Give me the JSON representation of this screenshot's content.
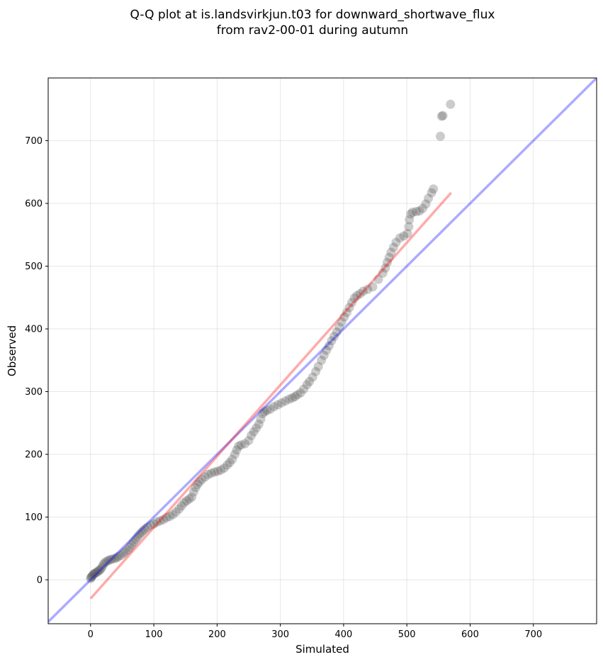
{
  "chart_data": {
    "type": "scatter",
    "title_lines": [
      "Q-Q plot at is.landsvirkjun.t03 for downward_shortwave_flux",
      "from rav2-00-01 during autumn"
    ],
    "xlabel": "Simulated",
    "ylabel": "Observed",
    "xlim": [
      -67,
      800
    ],
    "ylim": [
      -70,
      800
    ],
    "xticks": [
      0,
      100,
      200,
      300,
      400,
      500,
      600,
      700
    ],
    "yticks": [
      0,
      100,
      200,
      300,
      400,
      500,
      600,
      700
    ],
    "grid": true,
    "colors": {
      "points": "#555555",
      "identity_line": "#0000ff",
      "fit_line": "#ff0000"
    },
    "reference_lines": [
      {
        "kind": "identity",
        "x": [
          -67,
          800
        ],
        "y": [
          -67,
          800
        ]
      },
      {
        "kind": "fit",
        "x": [
          0,
          570
        ],
        "y": [
          -30,
          617
        ]
      }
    ],
    "points": [
      [
        0,
        2
      ],
      [
        1,
        4
      ],
      [
        2,
        5
      ],
      [
        3,
        7
      ],
      [
        5,
        9
      ],
      [
        6,
        10
      ],
      [
        8,
        11
      ],
      [
        10,
        12
      ],
      [
        12,
        14
      ],
      [
        14,
        15
      ],
      [
        16,
        17
      ],
      [
        18,
        20
      ],
      [
        20,
        24
      ],
      [
        22,
        27
      ],
      [
        25,
        29
      ],
      [
        28,
        31
      ],
      [
        31,
        32
      ],
      [
        34,
        33
      ],
      [
        38,
        34
      ],
      [
        41,
        35
      ],
      [
        44,
        37
      ],
      [
        48,
        39
      ],
      [
        52,
        42
      ],
      [
        55,
        45
      ],
      [
        59,
        48
      ],
      [
        62,
        52
      ],
      [
        65,
        56
      ],
      [
        68,
        60
      ],
      [
        71,
        64
      ],
      [
        74,
        68
      ],
      [
        77,
        72
      ],
      [
        80,
        75
      ],
      [
        83,
        78
      ],
      [
        86,
        81
      ],
      [
        90,
        84
      ],
      [
        95,
        87
      ],
      [
        100,
        89
      ],
      [
        105,
        92
      ],
      [
        110,
        94
      ],
      [
        115,
        96
      ],
      [
        120,
        99
      ],
      [
        125,
        101
      ],
      [
        130,
        104
      ],
      [
        135,
        108
      ],
      [
        140,
        113
      ],
      [
        144,
        118
      ],
      [
        148,
        123
      ],
      [
        152,
        126
      ],
      [
        156,
        129
      ],
      [
        160,
        132
      ],
      [
        163,
        140
      ],
      [
        166,
        147
      ],
      [
        169,
        152
      ],
      [
        172,
        156
      ],
      [
        176,
        160
      ],
      [
        181,
        164
      ],
      [
        186,
        168
      ],
      [
        191,
        170
      ],
      [
        196,
        172
      ],
      [
        201,
        173
      ],
      [
        206,
        175
      ],
      [
        211,
        178
      ],
      [
        216,
        183
      ],
      [
        220,
        187
      ],
      [
        224,
        192
      ],
      [
        228,
        200
      ],
      [
        231,
        207
      ],
      [
        234,
        213
      ],
      [
        238,
        215
      ],
      [
        244,
        217
      ],
      [
        250,
        222
      ],
      [
        254,
        230
      ],
      [
        258,
        236
      ],
      [
        262,
        242
      ],
      [
        266,
        248
      ],
      [
        269,
        256
      ],
      [
        272,
        265
      ],
      [
        275,
        268
      ],
      [
        279,
        270
      ],
      [
        284,
        272
      ],
      [
        290,
        276
      ],
      [
        296,
        279
      ],
      [
        302,
        282
      ],
      [
        308,
        285
      ],
      [
        314,
        288
      ],
      [
        319,
        290
      ],
      [
        323,
        292
      ],
      [
        327,
        295
      ],
      [
        332,
        298
      ],
      [
        337,
        304
      ],
      [
        342,
        311
      ],
      [
        346,
        316
      ],
      [
        351,
        323
      ],
      [
        356,
        332
      ],
      [
        360,
        340
      ],
      [
        365,
        350
      ],
      [
        369,
        358
      ],
      [
        373,
        366
      ],
      [
        377,
        373
      ],
      [
        381,
        381
      ],
      [
        385,
        388
      ],
      [
        389,
        395
      ],
      [
        393,
        403
      ],
      [
        397,
        411
      ],
      [
        401,
        419
      ],
      [
        405,
        426
      ],
      [
        409,
        434
      ],
      [
        413,
        442
      ],
      [
        417,
        449
      ],
      [
        421,
        453
      ],
      [
        426,
        456
      ],
      [
        431,
        460
      ],
      [
        438,
        463
      ],
      [
        446,
        467
      ],
      [
        455,
        479
      ],
      [
        462,
        489
      ],
      [
        466,
        497
      ],
      [
        469,
        506
      ],
      [
        472,
        514
      ],
      [
        475,
        522
      ],
      [
        479,
        530
      ],
      [
        483,
        538
      ],
      [
        489,
        545
      ],
      [
        495,
        548
      ],
      [
        501,
        552
      ],
      [
        503,
        563
      ],
      [
        504,
        574
      ],
      [
        506,
        583
      ],
      [
        509,
        586
      ],
      [
        515,
        587
      ],
      [
        520,
        588
      ],
      [
        525,
        592
      ],
      [
        530,
        599
      ],
      [
        534,
        608
      ],
      [
        539,
        617
      ],
      [
        542,
        623
      ],
      [
        553,
        707
      ],
      [
        555,
        739
      ],
      [
        557,
        740
      ],
      [
        569,
        758
      ]
    ]
  }
}
